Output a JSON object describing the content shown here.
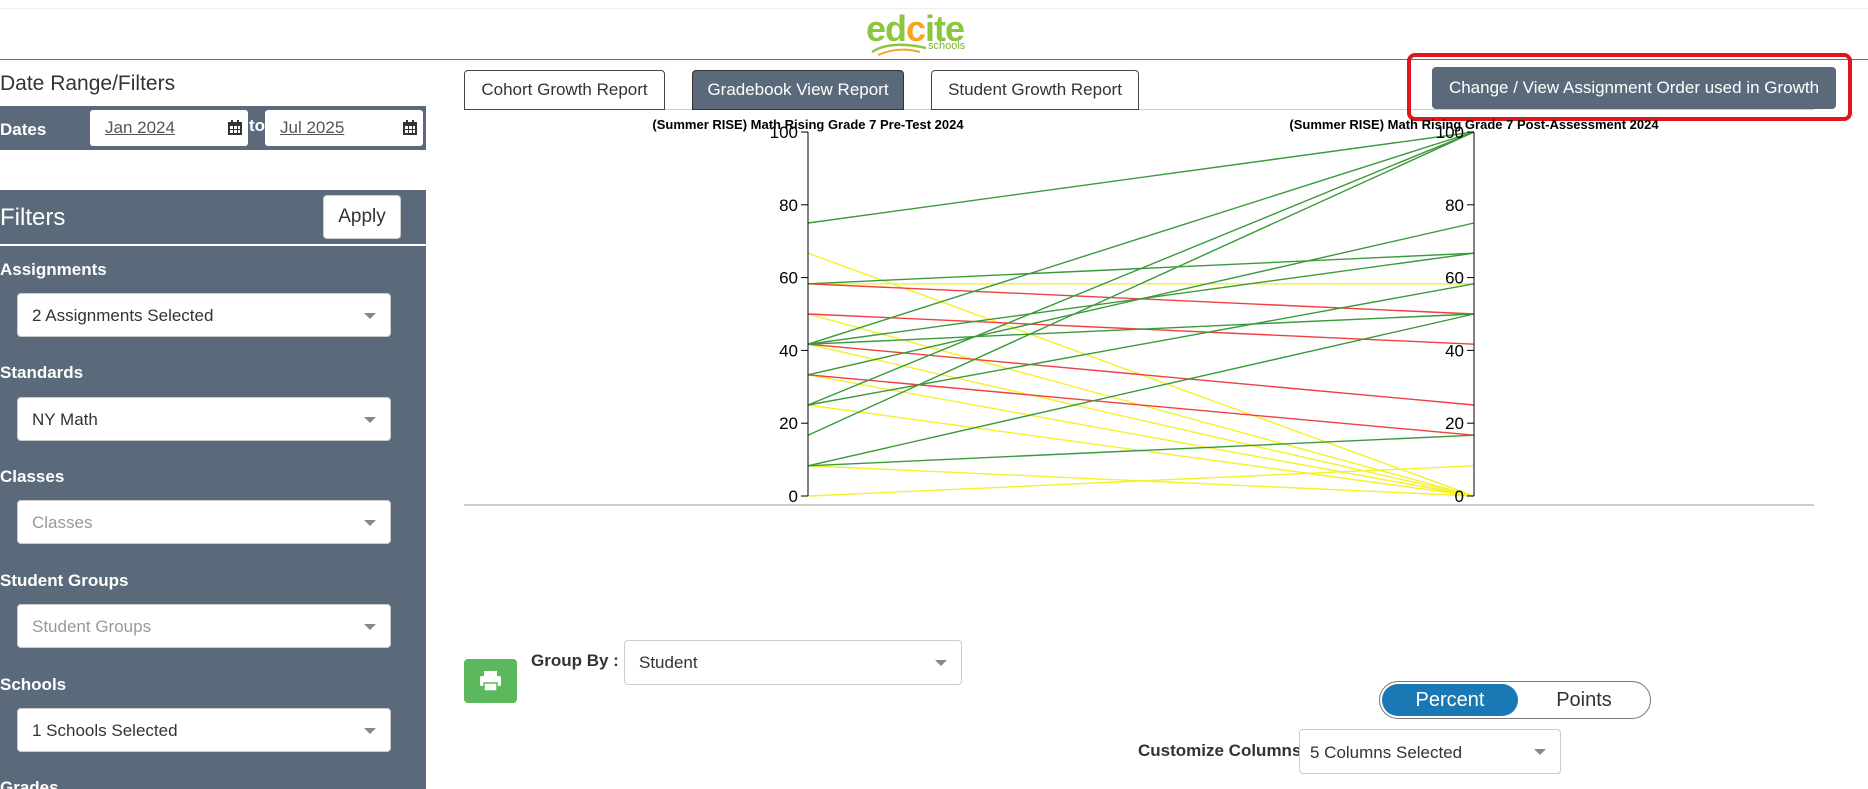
{
  "header": {
    "logo_main": "edcite",
    "logo_sub": "schools"
  },
  "sidebar": {
    "date_range_title": "Date Range/Filters",
    "dates_label": "Dates",
    "date_from": "Jan 2024",
    "date_to_label": "to",
    "date_to": "Jul 2025",
    "filters_title": "Filters",
    "apply_label": "Apply",
    "filters": [
      {
        "label": "Assignments",
        "value": "2 Assignments Selected",
        "placeholder": false
      },
      {
        "label": "Standards",
        "value": "NY Math",
        "placeholder": false
      },
      {
        "label": "Classes",
        "value": "Classes",
        "placeholder": true
      },
      {
        "label": "Student Groups",
        "value": "Student Groups",
        "placeholder": true
      },
      {
        "label": "Schools",
        "value": "1 Schools Selected",
        "placeholder": false
      },
      {
        "label": "Grades",
        "value": "",
        "placeholder": false
      }
    ]
  },
  "tabs": [
    {
      "label": "Cohort Growth Report",
      "active": false
    },
    {
      "label": "Gradebook View Report",
      "active": true
    },
    {
      "label": "Student Growth Report",
      "active": false
    }
  ],
  "order_button_label": "Change / View Assignment Order used in Growth",
  "controls": {
    "group_by_label": "Group By :",
    "group_by_value": "Student",
    "toggle_on": "Percent",
    "toggle_off": "Points",
    "customize_label": "Customize Columns:",
    "customize_value": "5 Columns Selected"
  },
  "colors": {
    "panel": "#5b6a7a",
    "green": "#3a9a3a",
    "red": "#f04040",
    "yellow": "#f4f02a",
    "highlight": "#e0141b",
    "toggle_active": "#1a78b4"
  },
  "chart_data": {
    "type": "line",
    "axes": [
      "(Summer RISE) Math Rising Grade 7 Pre-Test 2024",
      "(Summer RISE) Math Rising Grade 7 Post-Assessment 2024"
    ],
    "ylim": [
      0,
      100
    ],
    "ticks": [
      0,
      20,
      40,
      60,
      80,
      100
    ],
    "students": [
      {
        "pre": 75,
        "post": 100,
        "color": "green"
      },
      {
        "pre": 41.7,
        "post": 100,
        "color": "green"
      },
      {
        "pre": 25,
        "post": 100,
        "color": "green"
      },
      {
        "pre": 16.7,
        "post": 100,
        "color": "green"
      },
      {
        "pre": 33.3,
        "post": 75,
        "color": "green"
      },
      {
        "pre": 58.3,
        "post": 66.7,
        "color": "green"
      },
      {
        "pre": 41.7,
        "post": 66.7,
        "color": "green"
      },
      {
        "pre": 25,
        "post": 58.3,
        "color": "green"
      },
      {
        "pre": 41.7,
        "post": 50,
        "color": "green"
      },
      {
        "pre": 8.3,
        "post": 50,
        "color": "green"
      },
      {
        "pre": 8.3,
        "post": 16.7,
        "color": "green"
      },
      {
        "pre": 58.3,
        "post": 50,
        "color": "red"
      },
      {
        "pre": 50,
        "post": 41.7,
        "color": "red"
      },
      {
        "pre": 41.7,
        "post": 25,
        "color": "red"
      },
      {
        "pre": 33.3,
        "post": 16.7,
        "color": "red"
      },
      {
        "pre": 58.3,
        "post": 58.3,
        "color": "yellow"
      },
      {
        "pre": 66.7,
        "post": 0,
        "color": "yellow"
      },
      {
        "pre": 50,
        "post": 0,
        "color": "yellow"
      },
      {
        "pre": 41.7,
        "post": 0,
        "color": "yellow"
      },
      {
        "pre": 33.3,
        "post": 0,
        "color": "yellow"
      },
      {
        "pre": 25,
        "post": 0,
        "color": "yellow"
      },
      {
        "pre": 8.3,
        "post": 0,
        "color": "yellow"
      },
      {
        "pre": 0,
        "post": 8.3,
        "color": "yellow"
      }
    ]
  }
}
